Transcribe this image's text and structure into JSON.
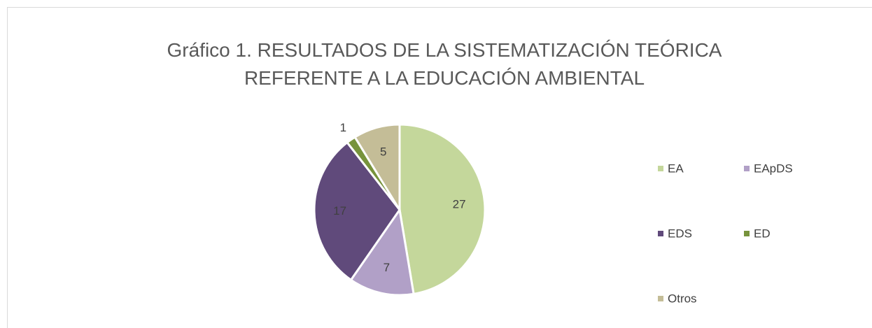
{
  "chart_data": {
    "type": "pie",
    "title": "Gráfico 1. RESULTADOS DE LA SISTEMATIZACIÓN TEÓRICA REFERENTE A LA EDUCACIÓN AMBIENTAL",
    "categories": [
      "EA",
      "EApDS",
      "EDS",
      "ED",
      "Otros"
    ],
    "values": [
      27,
      7,
      17,
      1,
      5
    ],
    "colors": [
      "#c4d79b",
      "#b1a0c7",
      "#604a7b",
      "#77933c",
      "#c4bd97"
    ],
    "legend": "right"
  }
}
